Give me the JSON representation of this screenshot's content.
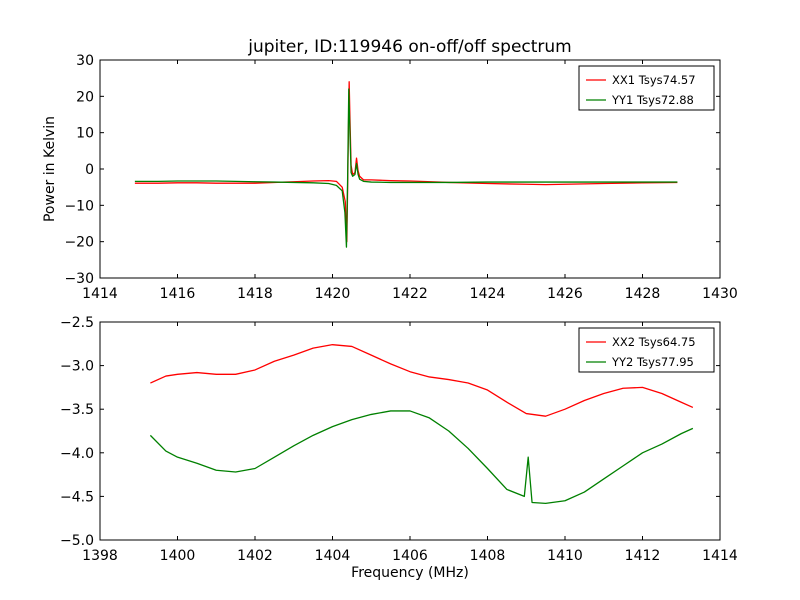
{
  "title": "jupiter, ID:119946 on-off/off spectrum",
  "chart_data": [
    {
      "type": "line",
      "title": "jupiter, ID:119946 on-off/off spectrum",
      "xlabel": "",
      "ylabel": "Power in Kelvin",
      "xlim": [
        1414,
        1430
      ],
      "ylim": [
        -30,
        30
      ],
      "xticks": [
        1414,
        1416,
        1418,
        1420,
        1422,
        1424,
        1426,
        1428,
        1430
      ],
      "yticks": [
        -30,
        -20,
        -10,
        0,
        10,
        20,
        30
      ],
      "xtick_labels": [
        "1414",
        "1416",
        "1418",
        "1420",
        "1422",
        "1424",
        "1426",
        "1428",
        "1430"
      ],
      "ytick_labels": [
        "−30",
        "−20",
        "−10",
        "0",
        "10",
        "20",
        "30"
      ],
      "grid": false,
      "legend_position": "top-right",
      "series": [
        {
          "name": "XX1 Tsys74.57",
          "color": "#ff0000",
          "x": [
            1414.9,
            1415.5,
            1416.0,
            1416.5,
            1417.0,
            1417.5,
            1418.0,
            1418.5,
            1419.0,
            1419.5,
            1419.9,
            1420.1,
            1420.25,
            1420.33,
            1420.37,
            1420.4,
            1420.43,
            1420.45,
            1420.48,
            1420.52,
            1420.58,
            1420.62,
            1420.66,
            1420.7,
            1420.8,
            1421.0,
            1421.5,
            1422.0,
            1423.0,
            1424.0,
            1425.0,
            1425.5,
            1426.0,
            1427.0,
            1428.0,
            1428.9
          ],
          "y": [
            -3.9,
            -3.9,
            -3.8,
            -3.8,
            -3.9,
            -3.9,
            -3.9,
            -3.7,
            -3.5,
            -3.3,
            -3.2,
            -3.4,
            -5.0,
            -9.0,
            -20.0,
            2.0,
            24.0,
            14.0,
            1.0,
            -1.5,
            -1.0,
            3.0,
            -0.5,
            -2.0,
            -3.0,
            -3.0,
            -3.2,
            -3.3,
            -3.7,
            -4.0,
            -4.2,
            -4.3,
            -4.2,
            -4.0,
            -3.8,
            -3.7
          ]
        },
        {
          "name": "YY1 Tsys72.88",
          "color": "#008000",
          "x": [
            1414.9,
            1415.5,
            1416.0,
            1416.5,
            1417.0,
            1417.5,
            1418.0,
            1418.5,
            1419.0,
            1419.5,
            1419.9,
            1420.1,
            1420.25,
            1420.32,
            1420.36,
            1420.39,
            1420.42,
            1420.45,
            1420.48,
            1420.52,
            1420.58,
            1420.62,
            1420.66,
            1420.7,
            1420.8,
            1421.0,
            1421.5,
            1422.0,
            1423.0,
            1424.0,
            1425.0,
            1426.0,
            1427.0,
            1428.0,
            1428.9
          ],
          "y": [
            -3.4,
            -3.4,
            -3.3,
            -3.3,
            -3.3,
            -3.4,
            -3.5,
            -3.6,
            -3.7,
            -3.8,
            -4.0,
            -4.5,
            -6.0,
            -12.0,
            -21.5,
            -3.0,
            22.0,
            10.0,
            -1.0,
            -2.0,
            -1.5,
            1.5,
            -1.5,
            -2.8,
            -3.4,
            -3.6,
            -3.7,
            -3.7,
            -3.7,
            -3.6,
            -3.6,
            -3.6,
            -3.6,
            -3.6,
            -3.6
          ]
        }
      ]
    },
    {
      "type": "line",
      "title": "",
      "xlabel": "Frequency (MHz)",
      "ylabel": "",
      "xlim": [
        1398,
        1414
      ],
      "ylim": [
        -5.0,
        -2.5
      ],
      "xticks": [
        1398,
        1400,
        1402,
        1404,
        1406,
        1408,
        1410,
        1412,
        1414
      ],
      "yticks": [
        -5.0,
        -4.5,
        -4.0,
        -3.5,
        -3.0,
        -2.5
      ],
      "xtick_labels": [
        "1398",
        "1400",
        "1402",
        "1404",
        "1406",
        "1408",
        "1410",
        "1412",
        "1414"
      ],
      "ytick_labels": [
        "−5.0",
        "−4.5",
        "−4.0",
        "−3.5",
        "−3.0",
        "−2.5"
      ],
      "grid": false,
      "legend_position": "top-right",
      "series": [
        {
          "name": "XX2 Tsys64.75",
          "color": "#ff0000",
          "x": [
            1399.3,
            1399.7,
            1400.0,
            1400.5,
            1401.0,
            1401.5,
            1402.0,
            1402.5,
            1403.0,
            1403.5,
            1404.0,
            1404.5,
            1405.0,
            1405.5,
            1406.0,
            1406.5,
            1407.0,
            1407.5,
            1408.0,
            1408.5,
            1409.0,
            1409.5,
            1410.0,
            1410.5,
            1411.0,
            1411.5,
            1412.0,
            1412.5,
            1413.0,
            1413.3
          ],
          "y": [
            -3.2,
            -3.12,
            -3.1,
            -3.08,
            -3.1,
            -3.1,
            -3.05,
            -2.95,
            -2.88,
            -2.8,
            -2.76,
            -2.78,
            -2.88,
            -2.98,
            -3.07,
            -3.13,
            -3.16,
            -3.2,
            -3.28,
            -3.42,
            -3.55,
            -3.58,
            -3.5,
            -3.4,
            -3.32,
            -3.26,
            -3.25,
            -3.32,
            -3.42,
            -3.48
          ]
        },
        {
          "name": "YY2 Tsys77.95",
          "color": "#008000",
          "x": [
            1399.3,
            1399.7,
            1400.0,
            1400.5,
            1401.0,
            1401.5,
            1402.0,
            1402.5,
            1403.0,
            1403.5,
            1404.0,
            1404.5,
            1405.0,
            1405.5,
            1406.0,
            1406.5,
            1407.0,
            1407.5,
            1408.0,
            1408.5,
            1408.95,
            1409.05,
            1409.15,
            1409.5,
            1410.0,
            1410.5,
            1411.0,
            1411.5,
            1412.0,
            1412.5,
            1413.0,
            1413.3
          ],
          "y": [
            -3.8,
            -3.98,
            -4.05,
            -4.12,
            -4.2,
            -4.22,
            -4.18,
            -4.05,
            -3.92,
            -3.8,
            -3.7,
            -3.62,
            -3.56,
            -3.52,
            -3.52,
            -3.6,
            -3.75,
            -3.95,
            -4.18,
            -4.42,
            -4.5,
            -4.05,
            -4.57,
            -4.58,
            -4.55,
            -4.45,
            -4.3,
            -4.15,
            -4.0,
            -3.9,
            -3.78,
            -3.72
          ]
        }
      ]
    }
  ]
}
